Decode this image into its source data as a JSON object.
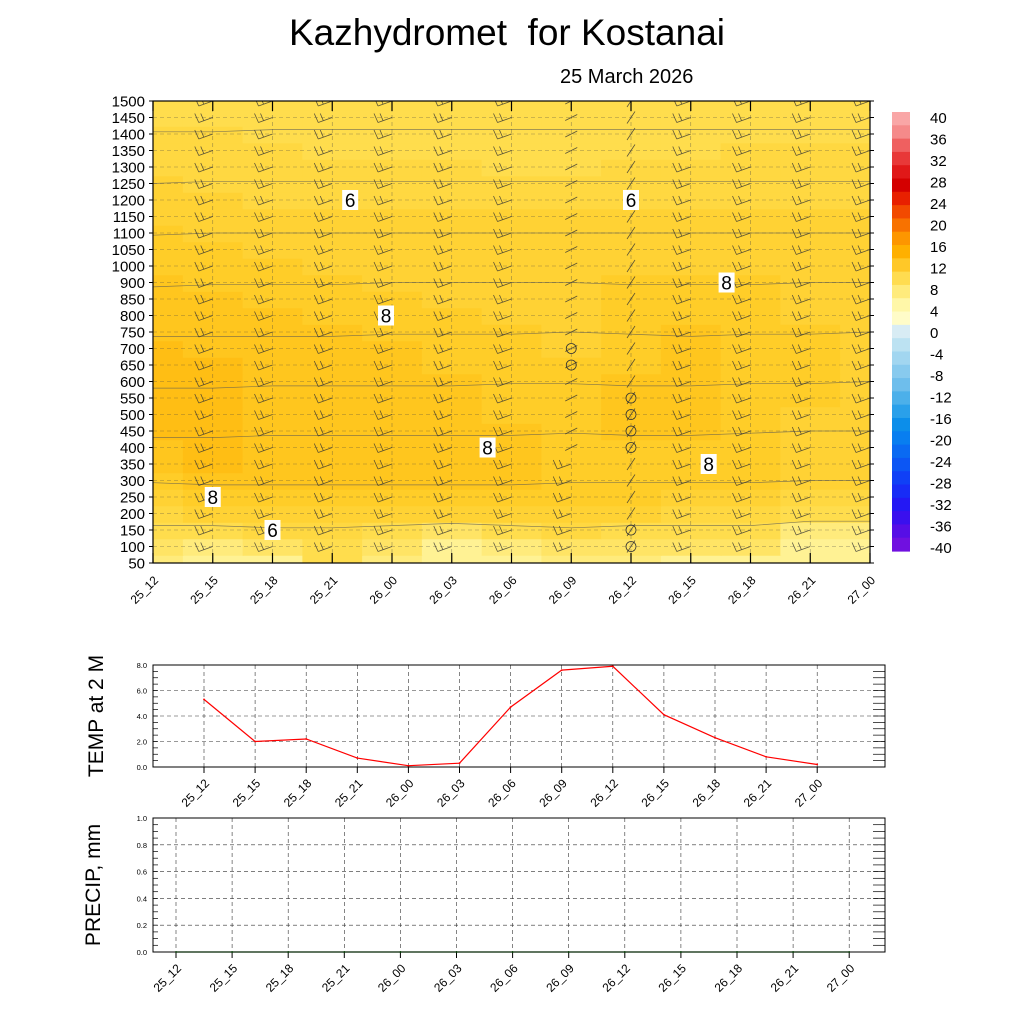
{
  "header": {
    "title": "Kazhydromet  for Kostanai",
    "date": "25 March 2026"
  },
  "chart_data": [
    {
      "type": "heatmap",
      "name": "temperature-cross-section",
      "title": "Kazhydromet  for Kostanai",
      "subtitle": "25 March 2026",
      "x_categories": [
        "25_12",
        "25_15",
        "25_18",
        "25_21",
        "26_00",
        "26_03",
        "26_06",
        "26_09",
        "26_12",
        "26_15",
        "26_18",
        "26_21",
        "27_00"
      ],
      "y_levels": [
        "50",
        "100",
        "150",
        "200",
        "250",
        "300",
        "350",
        "400",
        "450",
        "500",
        "550",
        "600",
        "650",
        "700",
        "750",
        "800",
        "850",
        "900",
        "1000",
        "1050",
        "1100",
        "1150",
        "1200",
        "1250",
        "1300",
        "1350",
        "1400",
        "1450",
        "1500"
      ],
      "temperature": [
        [
          3,
          2,
          2,
          5,
          3,
          1,
          2,
          3,
          3,
          2,
          2,
          1,
          1
        ],
        [
          4,
          3,
          4,
          5,
          4,
          2,
          3,
          4,
          4,
          4,
          4,
          2,
          2
        ],
        [
          5,
          5,
          6,
          6,
          5,
          4,
          5,
          6,
          5,
          5,
          5,
          3,
          3
        ],
        [
          6,
          7,
          7,
          7,
          7,
          7,
          7,
          7,
          7,
          6,
          6,
          5,
          5
        ],
        [
          7,
          8,
          8,
          8,
          8,
          8,
          8,
          8,
          8,
          7,
          7,
          6,
          6
        ],
        [
          8,
          9,
          9,
          9,
          9,
          9,
          9,
          8,
          8,
          8,
          8,
          7,
          7
        ],
        [
          9,
          10,
          9,
          9,
          9,
          9,
          9,
          8,
          8,
          8,
          8,
          7,
          7
        ],
        [
          9,
          10,
          9,
          9,
          9,
          9,
          9,
          8,
          8,
          8,
          8,
          7,
          7
        ],
        [
          10,
          10,
          9,
          9,
          9,
          9,
          9,
          8,
          9,
          9,
          8,
          7,
          7
        ],
        [
          10,
          10,
          9,
          9,
          9,
          9,
          8,
          8,
          9,
          9,
          8,
          7,
          7
        ],
        [
          10,
          10,
          9,
          9,
          9,
          9,
          8,
          8,
          9,
          9,
          8,
          8,
          7
        ],
        [
          10,
          10,
          9,
          9,
          9,
          9,
          8,
          8,
          9,
          9,
          8,
          8,
          7
        ],
        [
          10,
          10,
          9,
          9,
          9,
          8,
          8,
          8,
          8,
          9,
          8,
          8,
          7
        ],
        [
          10,
          9,
          9,
          9,
          9,
          8,
          8,
          7,
          8,
          9,
          8,
          8,
          7
        ],
        [
          9,
          9,
          9,
          9,
          8,
          8,
          8,
          7,
          8,
          9,
          8,
          8,
          7
        ],
        [
          9,
          9,
          9,
          8,
          8,
          8,
          7,
          7,
          8,
          8,
          8,
          7,
          7
        ],
        [
          9,
          9,
          8,
          8,
          8,
          7,
          7,
          7,
          8,
          8,
          8,
          7,
          7
        ],
        [
          9,
          8,
          8,
          8,
          7,
          7,
          7,
          7,
          8,
          8,
          8,
          7,
          7
        ],
        [
          8,
          8,
          8,
          7,
          7,
          7,
          7,
          7,
          7,
          7,
          7,
          7,
          7
        ],
        [
          8,
          8,
          7,
          7,
          7,
          7,
          7,
          7,
          7,
          7,
          7,
          7,
          7
        ],
        [
          8,
          7,
          7,
          7,
          7,
          7,
          7,
          7,
          7,
          7,
          7,
          7,
          7
        ],
        [
          7,
          7,
          7,
          7,
          7,
          7,
          7,
          7,
          7,
          7,
          7,
          7,
          7
        ],
        [
          7,
          7,
          6,
          6,
          6,
          6,
          6,
          6,
          6,
          6,
          6,
          6,
          6
        ],
        [
          7,
          6,
          6,
          6,
          6,
          6,
          6,
          6,
          6,
          6,
          6,
          6,
          6
        ],
        [
          6,
          6,
          6,
          6,
          6,
          6,
          5,
          5,
          6,
          6,
          6,
          6,
          6
        ],
        [
          6,
          6,
          6,
          5,
          5,
          5,
          5,
          5,
          5,
          5,
          6,
          6,
          6
        ],
        [
          6,
          6,
          5,
          5,
          5,
          5,
          5,
          5,
          5,
          5,
          5,
          5,
          5
        ],
        [
          5,
          5,
          5,
          5,
          5,
          5,
          5,
          5,
          5,
          5,
          5,
          5,
          5
        ],
        [
          5,
          5,
          5,
          5,
          5,
          5,
          5,
          5,
          5,
          5,
          5,
          5,
          5
        ]
      ],
      "contour_labels": [
        {
          "text": "6",
          "x_index": 3.3,
          "level": "1200"
        },
        {
          "text": "6",
          "x_index": 8.0,
          "level": "1200"
        },
        {
          "text": "8",
          "x_index": 9.6,
          "level": "900"
        },
        {
          "text": "8",
          "x_index": 3.9,
          "level": "800"
        },
        {
          "text": "8",
          "x_index": 5.6,
          "level": "400"
        },
        {
          "text": "8",
          "x_index": 9.3,
          "level": "350"
        },
        {
          "text": "8",
          "x_index": 1.0,
          "level": "250"
        },
        {
          "text": "6",
          "x_index": 2.0,
          "level": "150"
        }
      ],
      "colorbar": {
        "labels": [
          "40",
          "36",
          "32",
          "28",
          "24",
          "20",
          "16",
          "12",
          "8",
          "4",
          "0",
          "-4",
          "-8",
          "-12",
          "-16",
          "-20",
          "-24",
          "-28",
          "-32",
          "-36",
          "-40"
        ],
        "colors": [
          "#f9a6a6",
          "#f58a8a",
          "#ef6060",
          "#e83838",
          "#e01818",
          "#d40000",
          "#e82000",
          "#f24a00",
          "#f87200",
          "#fd9600",
          "#ffb000",
          "#ffc828",
          "#ffdc50",
          "#ffeb7c",
          "#fff7a8",
          "#fffcc8",
          "#d8ecf4",
          "#bce2f2",
          "#a2d6f0",
          "#88caee",
          "#6ebeec",
          "#4cb0ea",
          "#2aa0ea",
          "#0c8eea",
          "#087ef0",
          "#0a6af2",
          "#0c56f4",
          "#1040f6",
          "#182cf6",
          "#2418f4",
          "#3a10ee",
          "#560ee6",
          "#7010e0"
        ]
      }
    },
    {
      "type": "line",
      "name": "temp-2m",
      "ylabel": "TEMP at 2 M",
      "ylim": [
        0,
        8
      ],
      "yticks": [
        "0.0",
        "2.0",
        "4.0",
        "6.0",
        "8.0"
      ],
      "categories": [
        "25_12",
        "25_15",
        "25_18",
        "25_21",
        "26_00",
        "26_03",
        "26_06",
        "26_09",
        "26_12",
        "26_15",
        "26_18",
        "26_21",
        "27_00"
      ],
      "values": [
        5.3,
        2.0,
        2.2,
        0.7,
        0.1,
        0.3,
        4.7,
        7.6,
        7.9,
        4.1,
        2.3,
        0.8,
        0.2
      ],
      "color": "#ff0000"
    },
    {
      "type": "line",
      "name": "precip",
      "ylabel": "PRECIP, mm",
      "ylim": [
        0,
        1
      ],
      "yticks": [
        "0.0",
        "0.2",
        "0.4",
        "0.6",
        "0.8",
        "1.0"
      ],
      "categories": [
        "25_12",
        "25_15",
        "25_18",
        "25_21",
        "26_00",
        "26_03",
        "26_06",
        "26_09",
        "26_12",
        "26_15",
        "26_18",
        "26_21",
        "27_00"
      ],
      "values": [
        0,
        0,
        0,
        0,
        0,
        0,
        0,
        0,
        0,
        0,
        0,
        0,
        0
      ],
      "color": "#00aa00"
    }
  ]
}
